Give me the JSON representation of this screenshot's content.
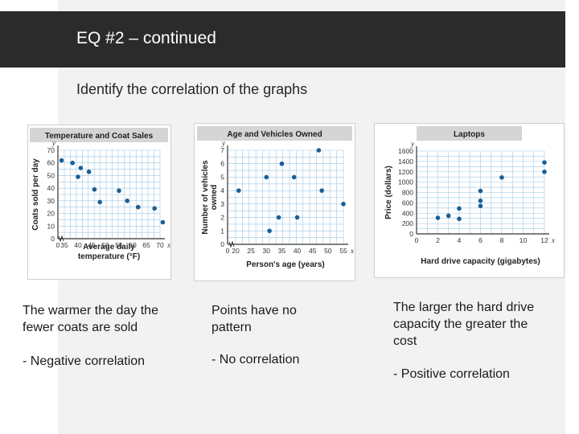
{
  "header": {
    "title": "EQ #2 – continued"
  },
  "subtitle": "Identify the correlation of the graphs",
  "colors": {
    "header_bg": "#2b2b2b",
    "title_bar": "#d5d5d5",
    "grid": "#9ec7e4",
    "point": "#1b5e96",
    "axis": "#333333"
  },
  "chart_data": [
    {
      "type": "scatter",
      "title": "Temperature and Coat Sales",
      "xlabel": "Average daily temperature (°F)",
      "ylabel": "Coats sold per day",
      "x_ticks": [
        "0",
        "35",
        "40",
        "45",
        "50",
        "55",
        "60",
        "65",
        "70"
      ],
      "y_ticks": [
        "0",
        "10",
        "20",
        "30",
        "40",
        "50",
        "60",
        "70"
      ],
      "x_axis_letter": "x",
      "y_axis_letter": "y",
      "points": [
        [
          34,
          62
        ],
        [
          38,
          60
        ],
        [
          41,
          56
        ],
        [
          44,
          53
        ],
        [
          40,
          49
        ],
        [
          46,
          39
        ],
        [
          48,
          29
        ],
        [
          55,
          38
        ],
        [
          58,
          30
        ],
        [
          62,
          25
        ],
        [
          68,
          24
        ],
        [
          71,
          13
        ]
      ]
    },
    {
      "type": "scatter",
      "title": "Age and Vehicles Owned",
      "xlabel": "Person's age (years)",
      "ylabel": "Number of vehicles owned",
      "x_ticks": [
        "0",
        "20",
        "25",
        "30",
        "35",
        "40",
        "45",
        "50",
        "55"
      ],
      "y_ticks": [
        "0",
        "1",
        "2",
        "3",
        "4",
        "5",
        "6",
        "7"
      ],
      "x_axis_letter": "x",
      "y_axis_letter": "y",
      "points": [
        [
          21,
          4
        ],
        [
          30,
          5
        ],
        [
          31,
          1
        ],
        [
          34,
          2
        ],
        [
          35,
          6
        ],
        [
          39,
          5
        ],
        [
          40,
          2
        ],
        [
          47,
          7
        ],
        [
          48,
          4
        ],
        [
          55,
          3
        ]
      ]
    },
    {
      "type": "scatter",
      "title": "Laptops",
      "xlabel": "Hard drive capacity (gigabytes)",
      "ylabel": "Price (dollars)",
      "x_ticks": [
        "0",
        "2",
        "4",
        "6",
        "8",
        "10",
        "12"
      ],
      "y_ticks": [
        "0",
        "200",
        "400",
        "600",
        "800",
        "1000",
        "1200",
        "1400",
        "1600"
      ],
      "x_axis_letter": "x",
      "y_axis_letter": "y",
      "points": [
        [
          2,
          310
        ],
        [
          3,
          350
        ],
        [
          4,
          290
        ],
        [
          4,
          490
        ],
        [
          6,
          540
        ],
        [
          6,
          640
        ],
        [
          6,
          830
        ],
        [
          8,
          1090
        ],
        [
          12,
          1200
        ],
        [
          12,
          1380
        ]
      ]
    }
  ],
  "captions": [
    {
      "text": "The warmer the day the fewer coats are sold",
      "result": "- Negative correlation"
    },
    {
      "text": "Points have no pattern",
      "result": "- No correlation"
    },
    {
      "text": "The larger the hard drive capacity the greater the cost",
      "result": "- Positive correlation"
    }
  ]
}
